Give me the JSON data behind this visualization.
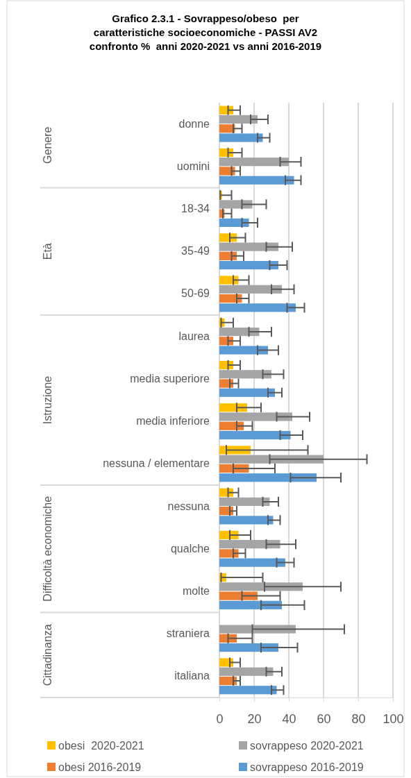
{
  "chart_data": {
    "type": "bar",
    "orientation": "horizontal",
    "title": "Grafico 2.3.1 - Sovrappeso/obeso  per\ncaratteristiche socioeconomiche - PASSI AV2\nconfronto %  anni 2020-2021 vs anni 2016-2019",
    "categories": [
      "donne",
      "uomini",
      "18-34",
      "35-49",
      "50-69",
      "laurea",
      "media superiore",
      "media inferiore",
      "nessuna / elementare",
      "nessuna",
      "qualche",
      "molte",
      "straniera",
      "italiana"
    ],
    "annotations": [
      "Genere",
      "Età",
      "Istruzione",
      "Difficoltà economiche",
      "Cittadinanza"
    ],
    "series": [
      {
        "name": "obesi  2020-2021",
        "color": "#ffc000",
        "values": [
          8,
          8,
          1.5,
          10,
          11,
          3,
          8,
          16,
          18,
          8,
          11,
          4,
          null,
          8
        ],
        "errors": [
          [
            5,
            12
          ],
          [
            5,
            13
          ],
          [
            0.5,
            7
          ],
          [
            6,
            15
          ],
          [
            8,
            17
          ],
          [
            1,
            8
          ],
          [
            5,
            12
          ],
          [
            10,
            24
          ],
          [
            4,
            51
          ],
          [
            5,
            11
          ],
          [
            6,
            18
          ],
          [
            1,
            25
          ],
          null,
          [
            6,
            12
          ]
        ]
      },
      {
        "name": "sovrappeso 2020-2021",
        "color": "#a5a5a5",
        "values": [
          22,
          40,
          19,
          34,
          36,
          23,
          30,
          42,
          60,
          29,
          35,
          48,
          44,
          31
        ],
        "errors": [
          [
            18,
            28
          ],
          [
            35,
            47
          ],
          [
            13,
            27
          ],
          [
            27,
            42
          ],
          [
            30,
            43
          ],
          [
            17,
            30
          ],
          [
            25,
            37
          ],
          [
            33,
            52
          ],
          [
            29,
            85
          ],
          [
            25,
            34
          ],
          [
            27,
            44
          ],
          [
            26,
            70
          ],
          [
            19,
            72
          ],
          [
            27,
            36
          ]
        ]
      },
      {
        "name": "obesi 2016-2019",
        "color": "#ed7d31",
        "values": [
          9,
          9,
          3,
          10,
          13,
          8,
          8,
          14,
          17,
          8,
          11,
          22,
          10,
          10
        ],
        "errors": [
          [
            8,
            13
          ],
          [
            7,
            12
          ],
          [
            2,
            7
          ],
          [
            7,
            14
          ],
          [
            10,
            17
          ],
          [
            5,
            12
          ],
          [
            6,
            11
          ],
          [
            10,
            19
          ],
          [
            8,
            32
          ],
          [
            6,
            10
          ],
          [
            8,
            15
          ],
          [
            13,
            35
          ],
          [
            5,
            19
          ],
          [
            8,
            12
          ]
        ]
      },
      {
        "name": "sovrappeso 2016-2019",
        "color": "#5b9bd5",
        "values": [
          25,
          43,
          17,
          34,
          44,
          28,
          32,
          41,
          56,
          31,
          38,
          36,
          34,
          33
        ],
        "errors": [
          [
            22,
            29
          ],
          [
            38,
            47
          ],
          [
            13,
            22
          ],
          [
            29,
            39
          ],
          [
            39,
            49
          ],
          [
            22,
            34
          ],
          [
            28,
            36
          ],
          [
            35,
            48
          ],
          [
            41,
            70
          ],
          [
            28,
            35
          ],
          [
            33,
            43
          ],
          [
            24,
            49
          ],
          [
            24,
            45
          ],
          [
            30,
            37
          ]
        ]
      }
    ],
    "xlim": [
      0,
      100
    ],
    "xticks": [
      0,
      20,
      40,
      60,
      80,
      100
    ],
    "grid": "x",
    "legend": "bottom"
  }
}
